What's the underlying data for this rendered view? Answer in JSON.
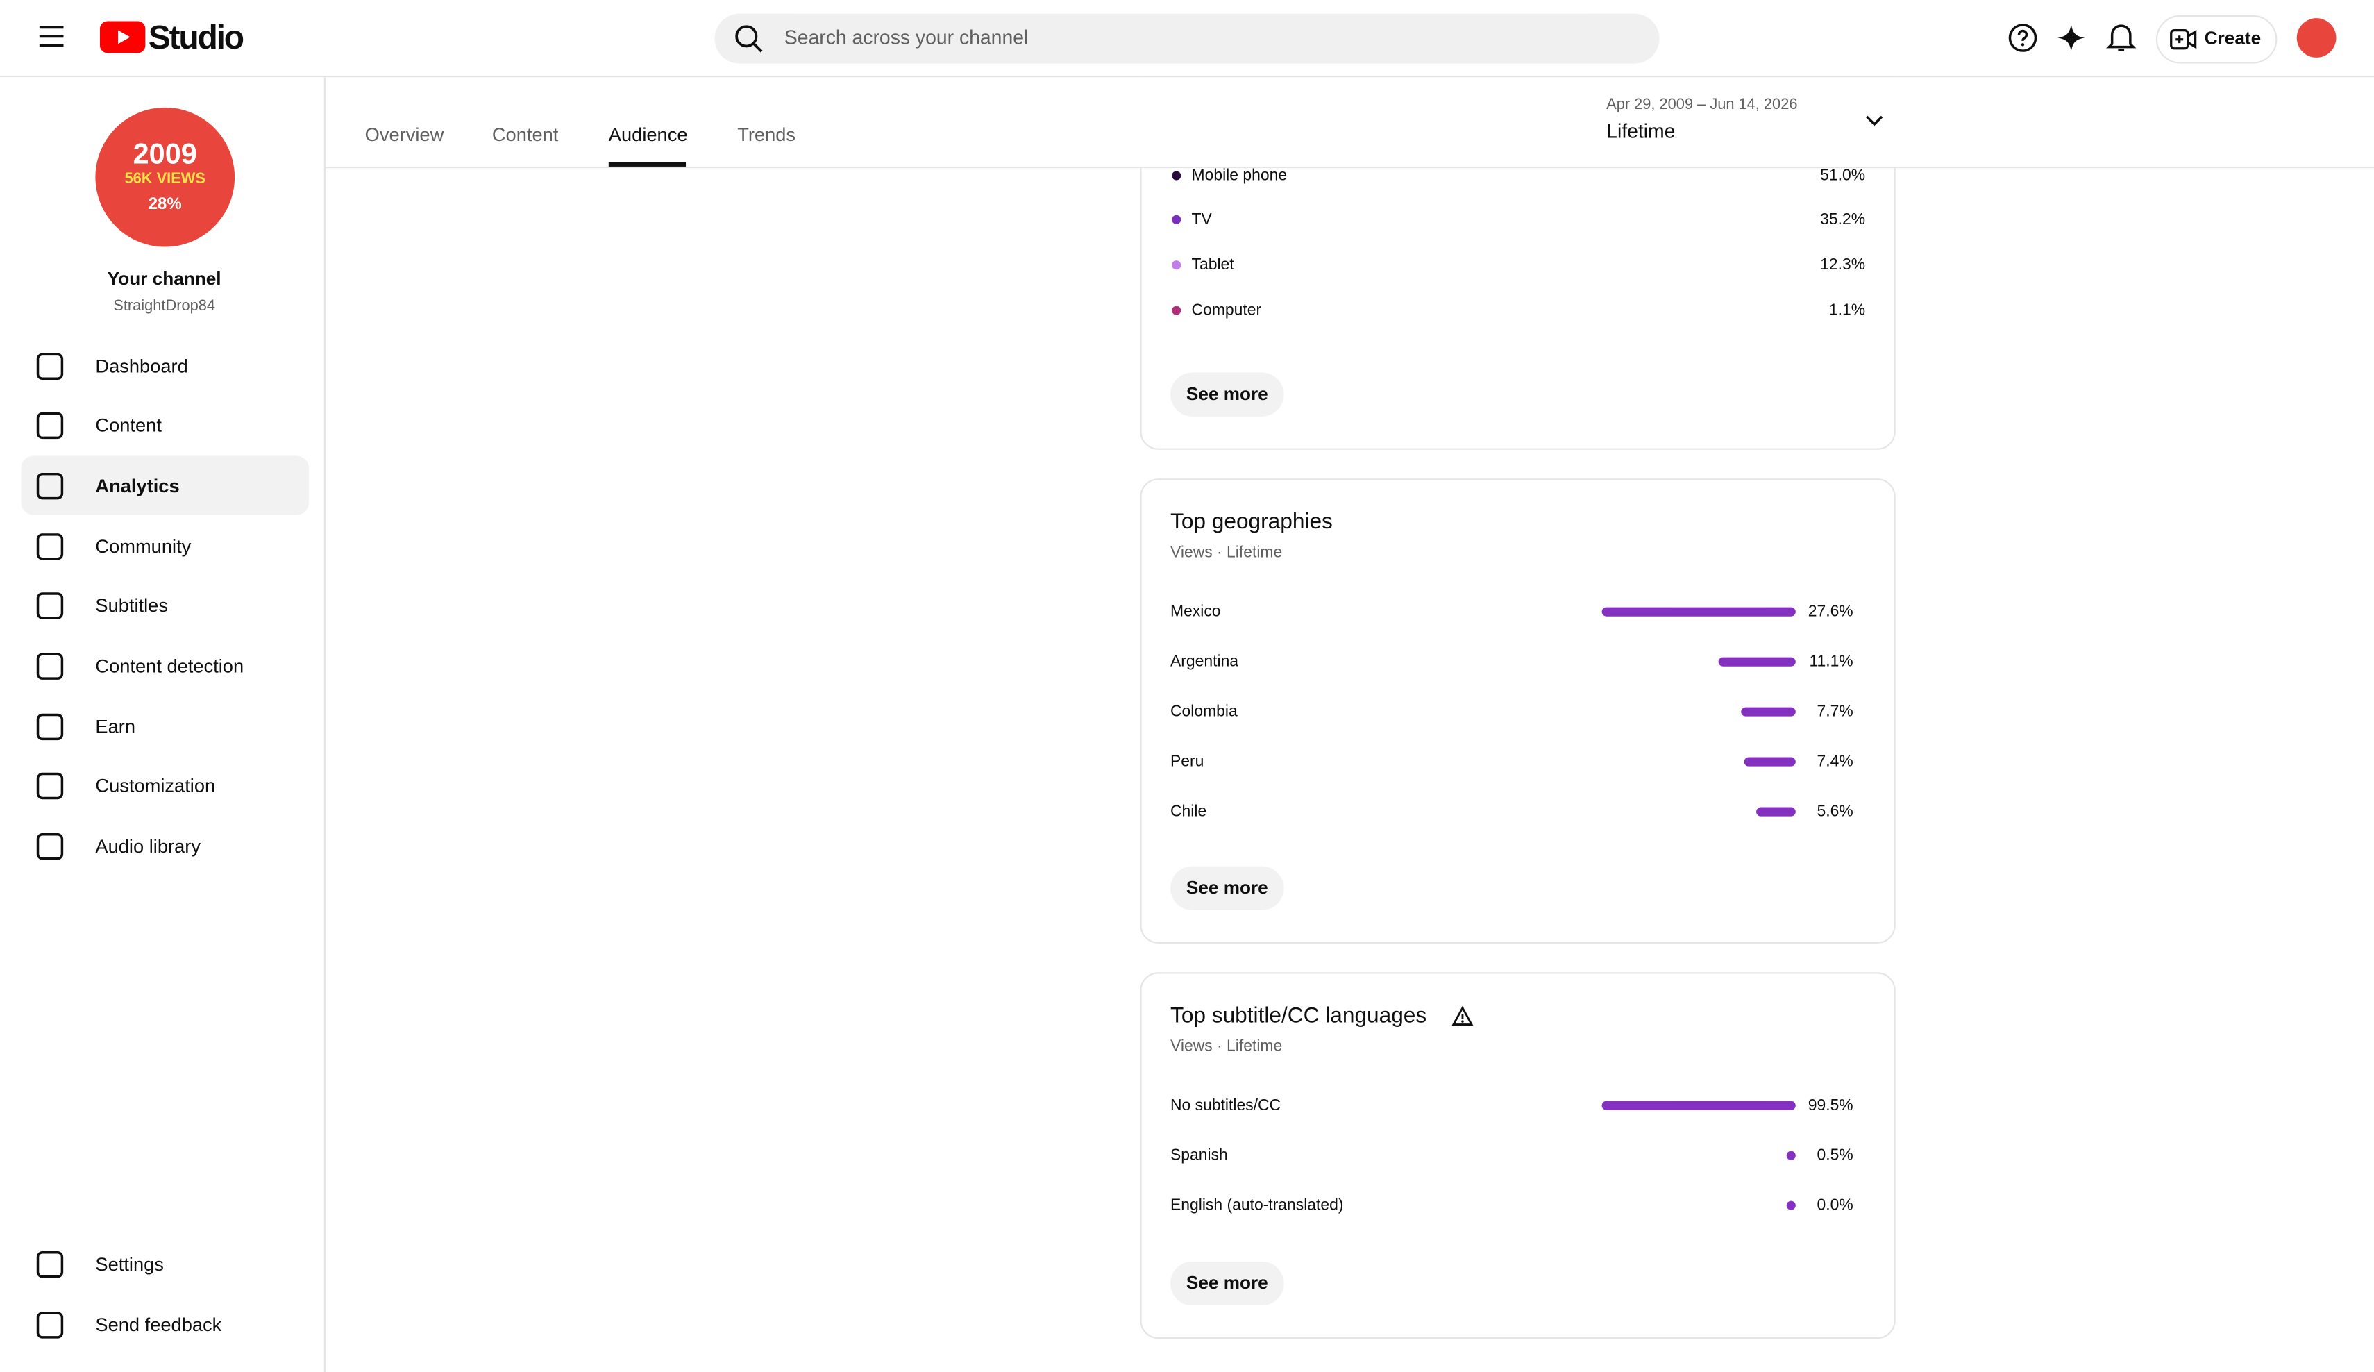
{
  "header": {
    "logo": "Studio",
    "search_placeholder": "Search across your channel",
    "create": "Create"
  },
  "sidebar": {
    "avatar_lines": [
      "2009",
      "56K VIEWS",
      "28%"
    ],
    "channel_title": "Your channel",
    "handle": "StraightDrop84",
    "nav": [
      "Dashboard",
      "Content",
      "Analytics",
      "Community",
      "Subtitles",
      "Content detection",
      "Earn",
      "Customization",
      "Audio library"
    ],
    "active": "Analytics",
    "nav_bottom": [
      "Settings",
      "Send feedback"
    ]
  },
  "tabs": [
    "Overview",
    "Content",
    "Audience",
    "Trends"
  ],
  "active_tab": "Audience",
  "date_range": {
    "dates": "Apr 29, 2009 – Jun 14, 2026",
    "label": "Lifetime"
  },
  "devices": {
    "rows": [
      {
        "label": "Mobile phone",
        "value": "51.0%",
        "color": "#2b0a3d"
      },
      {
        "label": "TV",
        "value": "35.2%",
        "color": "#7b2fbf"
      },
      {
        "label": "Tablet",
        "value": "12.3%",
        "color": "#c07ee6"
      },
      {
        "label": "Computer",
        "value": "1.1%",
        "color": "#b0307a"
      }
    ],
    "button": "See more"
  },
  "geographies": {
    "title": "Top geographies",
    "subtitle": "Views · Lifetime",
    "categories": [
      "Mexico",
      "Argentina",
      "Colombia",
      "Peru",
      "Chile"
    ],
    "values": [
      27.6,
      11.1,
      7.7,
      7.4,
      5.6
    ],
    "value_labels": [
      "27.6%",
      "11.1%",
      "7.7%",
      "7.4%",
      "5.6%"
    ],
    "color": "#8430c0",
    "button": "See more"
  },
  "subtitles": {
    "title": "Top subtitle/CC languages",
    "subtitle": "Views · Lifetime",
    "categories": [
      "No subtitles/CC",
      "Spanish",
      "English (auto-translated)"
    ],
    "values": [
      99.5,
      0.5,
      0.0
    ],
    "value_labels": [
      "99.5%",
      "0.5%",
      "0.0%"
    ],
    "color": "#8430c0",
    "button": "See more"
  }
}
